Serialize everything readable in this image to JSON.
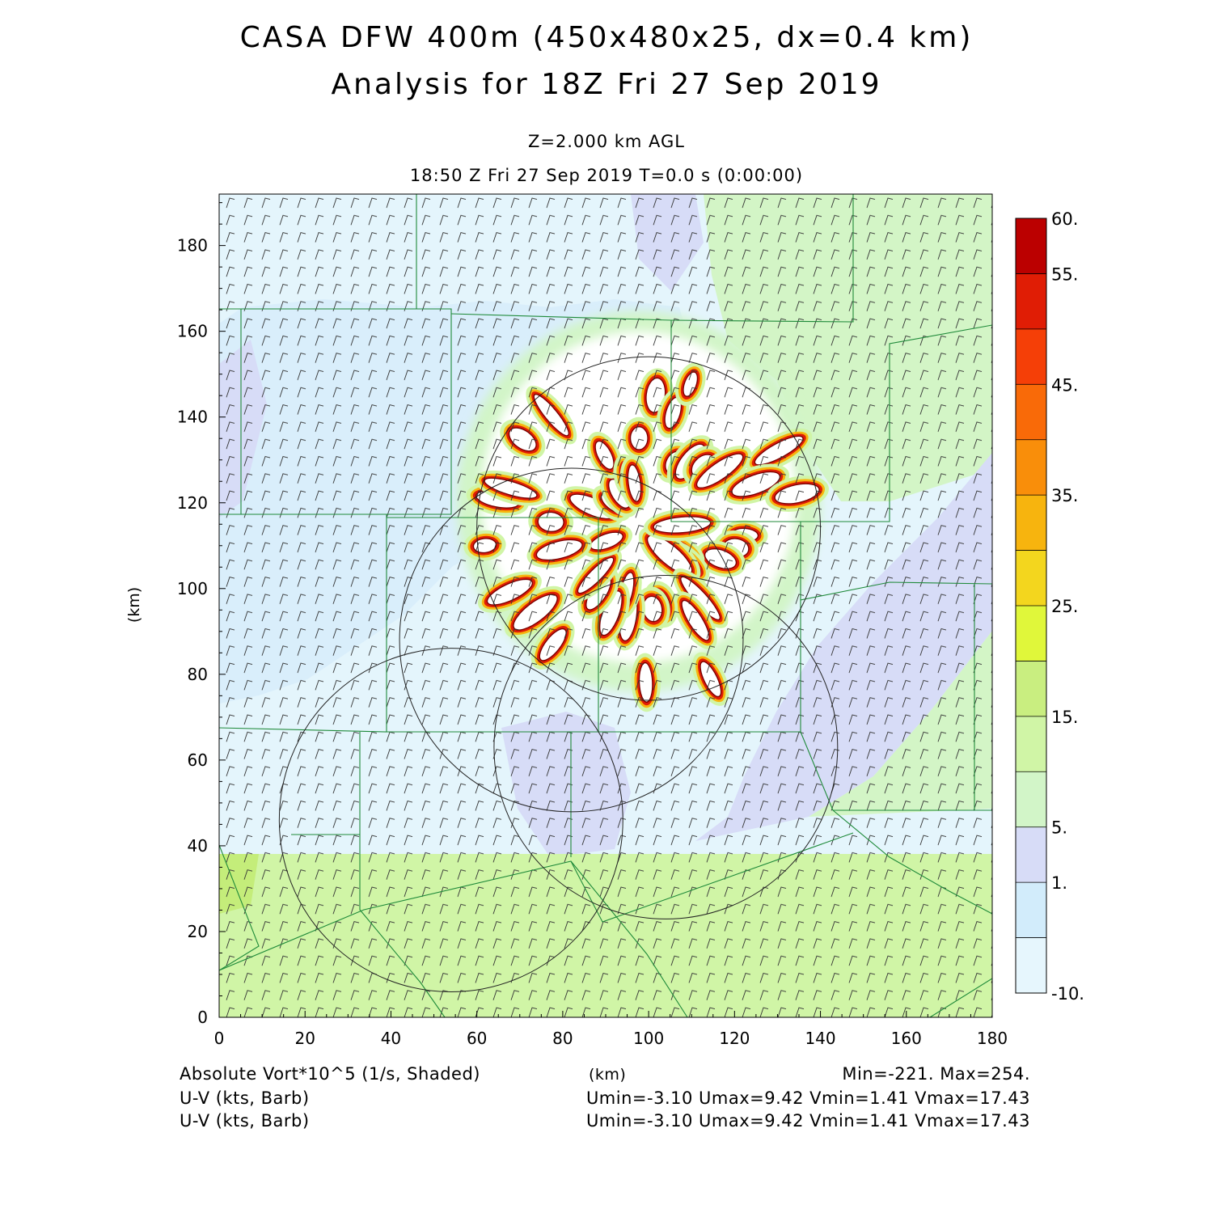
{
  "header": {
    "title_line1": "CASA DFW 400m (450x480x25, dx=0.4 km)",
    "title_line2": "Analysis for 18Z Fri 27 Sep 2019",
    "level": "Z=2.000 km AGL",
    "time": "18:50 Z Fri 27 Sep 2019    T=0.0 s (0:00:00)"
  },
  "chart_data": {
    "type": "heatmap",
    "field": "Absolute Vort*10^5 (1/s, Shaded)",
    "xlabel": "(km)",
    "ylabel": "(km)",
    "xlim": [
      0,
      180
    ],
    "ylim": [
      0,
      192
    ],
    "x_ticks": [
      0,
      20,
      40,
      60,
      80,
      100,
      120,
      140,
      160,
      180
    ],
    "y_ticks": [
      0,
      20,
      40,
      60,
      80,
      100,
      120,
      140,
      160,
      180
    ],
    "colorbar": {
      "levels": [
        -10,
        -5,
        1,
        5,
        10,
        15,
        20,
        25,
        30,
        35,
        40,
        45,
        50,
        55,
        60
      ],
      "tick_labels": [
        "-10.",
        "1.",
        "5.",
        "15.",
        "25.",
        "35.",
        "45.",
        "55.",
        "60."
      ],
      "colors": [
        "#e6f6fd",
        "#d2ecfb",
        "#d7dcf7",
        "#d2f5c8",
        "#d0f5a6",
        "#c9ee80",
        "#e0f73a",
        "#f3d61e",
        "#f7b40e",
        "#f98e0a",
        "#f96a08",
        "#f53f07",
        "#e01d05",
        "#bb0000"
      ]
    },
    "radar_rings": [
      {
        "cx": 100,
        "cy": 114,
        "r": 40
      },
      {
        "cx": 82,
        "cy": 88,
        "r": 40
      },
      {
        "cx": 104,
        "cy": 63,
        "r": 40
      },
      {
        "cx": 54,
        "cy": 46,
        "r": 40
      }
    ],
    "stats": {
      "min": "-221.",
      "max": "254."
    },
    "wind_field": {
      "name": "U-V (kts, Barb)",
      "stats": "Umin=-3.10  Umax=9.42  Vmin=1.41  Vmax=17.43"
    }
  },
  "footer": {
    "field_label": "Absolute Vort*10^5 (1/s, Shaded)",
    "xaxis_unit": "(km)",
    "minmax": "Min=-221.  Max=254.",
    "barb1_label": "U-V (kts, Barb)",
    "barb1_stats": "Umin=-3.10  Umax=9.42  Vmin=1.41  Vmax=17.43",
    "barb2_label": "U-V (kts, Barb)",
    "barb2_stats": "Umin=-3.10  Umax=9.42  Vmin=1.41  Vmax=17.43"
  }
}
